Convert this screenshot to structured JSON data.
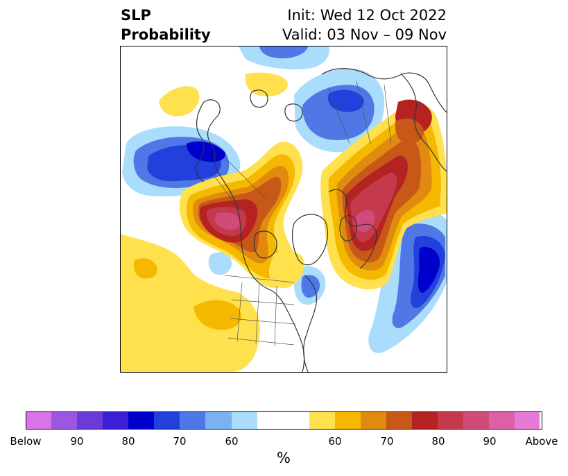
{
  "header": {
    "title_line1": "SLP",
    "title_line2": "Probability",
    "init": "Init: Wed 12 Oct 2022",
    "valid": "Valid: 03 Nov – 09 Nov"
  },
  "colorbar": {
    "unit_label": "%",
    "colors": [
      "#d873e8",
      "#9c57e1",
      "#6b3bd8",
      "#3b1fd6",
      "#0000cc",
      "#2240db",
      "#4f78e6",
      "#78b2f3",
      "#aadcfb",
      "#ffffff",
      "#ffffff",
      "#ffe04d",
      "#f4b800",
      "#e08a10",
      "#c85818",
      "#b42222",
      "#c43a4c",
      "#d04a7a",
      "#dc60a6",
      "#e67ad8"
    ],
    "tick_labels": [
      "Below",
      "90",
      "80",
      "70",
      "60",
      "60",
      "70",
      "80",
      "90",
      "Above"
    ]
  },
  "map": {
    "projection": "north-polar-stereographic",
    "variable": "SLP probability",
    "colors": {
      "below_60": "#aadcfb",
      "below_70": "#4f78e6",
      "below_80": "#2240db",
      "below_90": "#0000cc",
      "above_60": "#ffe04d",
      "above_65": "#f4b800",
      "above_70": "#e08a10",
      "above_75": "#c85818",
      "above_80": "#b42222",
      "above_85": "#c43a4c",
      "above_90": "#d04a7a"
    }
  }
}
